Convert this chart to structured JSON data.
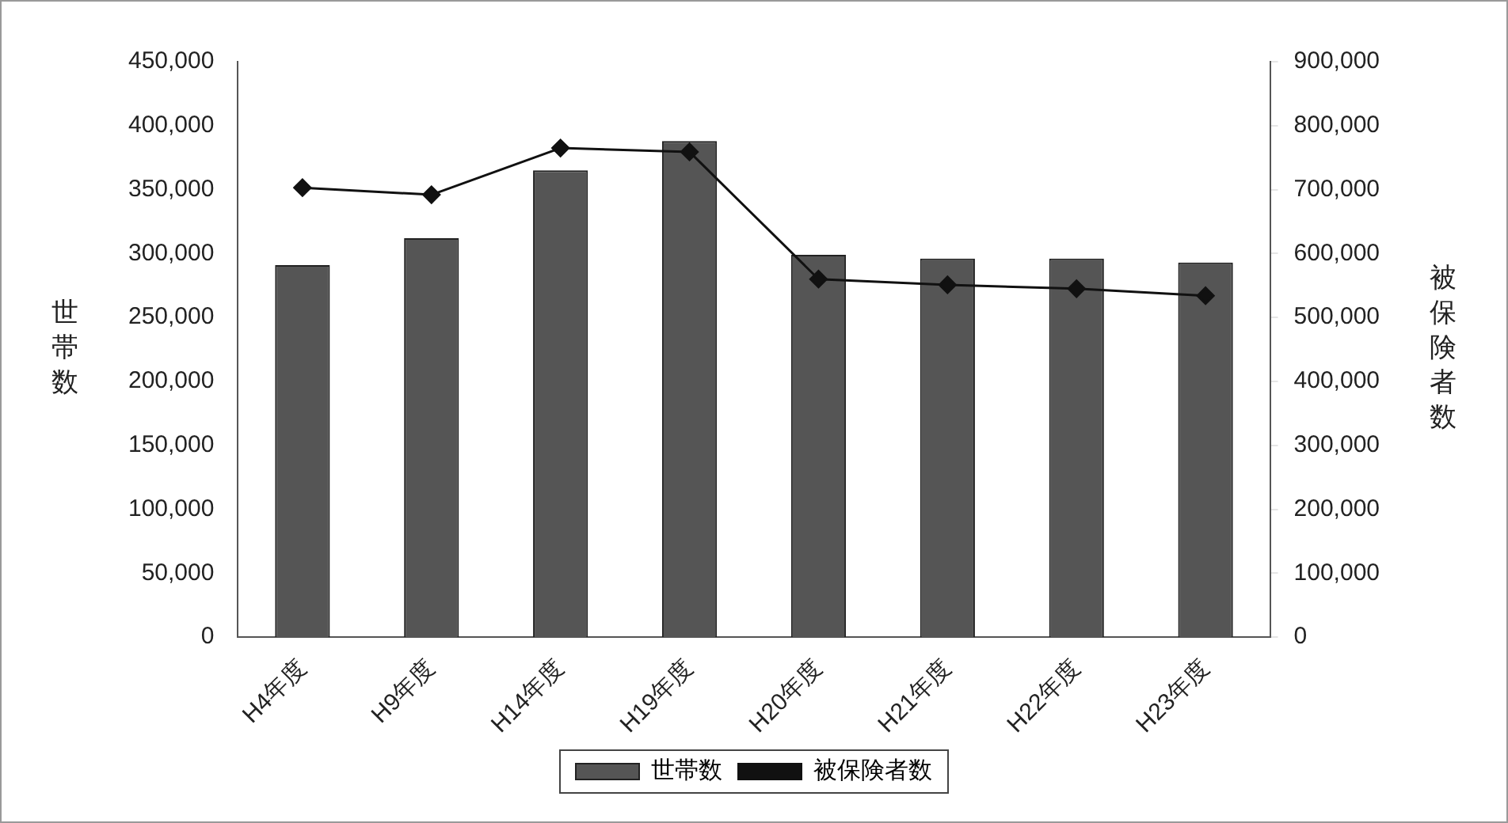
{
  "chart_data": {
    "type": "bar",
    "categories": [
      "H4年度",
      "H9年度",
      "H14年度",
      "H19年度",
      "H20年度",
      "H21年度",
      "H22年度",
      "H23年度"
    ],
    "ylabel": "世帯数",
    "y2label": "被保険者数",
    "series": [
      {
        "name": "世帯数",
        "color": "#555555",
        "values": [
          291000,
          312000,
          365000,
          388000,
          299000,
          296000,
          296000,
          293000
        ]
      },
      {
        "name": "被保険者数",
        "type": "line",
        "axis": "y2",
        "color": "#111111",
        "marker": "diamond",
        "values": [
          703000,
          692000,
          765000,
          759000,
          560000,
          551000,
          545000,
          534000
        ]
      }
    ],
    "ylim": [
      0,
      450000
    ],
    "yticks": [
      {
        "value": 0,
        "label": "0"
      },
      {
        "value": 50000,
        "label": "50,000"
      },
      {
        "value": 100000,
        "label": "100,000"
      },
      {
        "value": 150000,
        "label": "150,000"
      },
      {
        "value": 200000,
        "label": "200,000"
      },
      {
        "value": 250000,
        "label": "250,000"
      },
      {
        "value": 300000,
        "label": "300,000"
      },
      {
        "value": 350000,
        "label": "350,000"
      },
      {
        "value": 400000,
        "label": "400,000"
      },
      {
        "value": 450000,
        "label": "450,000"
      }
    ],
    "y2lim": [
      0,
      900000
    ],
    "y2ticks": [
      {
        "value": 0,
        "label": "0"
      },
      {
        "value": 100000,
        "label": "100,000"
      },
      {
        "value": 200000,
        "label": "200,000"
      },
      {
        "value": 300000,
        "label": "300,000"
      },
      {
        "value": 400000,
        "label": "400,000"
      },
      {
        "value": 500000,
        "label": "500,000"
      },
      {
        "value": 600000,
        "label": "600,000"
      },
      {
        "value": 700000,
        "label": "700,000"
      },
      {
        "value": 800000,
        "label": "800,000"
      },
      {
        "value": 900000,
        "label": "900,000"
      }
    ],
    "grid": false,
    "legend": "bottom"
  }
}
